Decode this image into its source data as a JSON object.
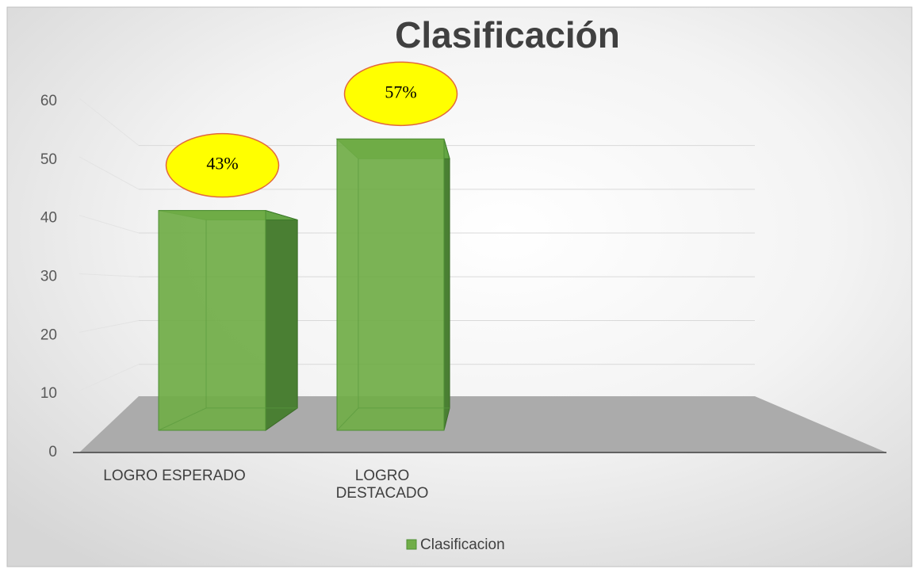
{
  "chart_data": {
    "type": "bar3d",
    "title": "Clasificación",
    "categories": [
      "LOGRO ESPERADO",
      "LOGRO DESTACADO"
    ],
    "series": [
      {
        "name": "Clasificacion",
        "color": "#70ad47",
        "values": [
          43,
          57
        ],
        "value_labels": [
          "43%",
          "57%"
        ]
      }
    ],
    "ylim": [
      0,
      60
    ],
    "yticks": [
      0,
      10,
      20,
      30,
      40,
      50,
      60
    ],
    "grid": true,
    "legend": "bottom"
  }
}
